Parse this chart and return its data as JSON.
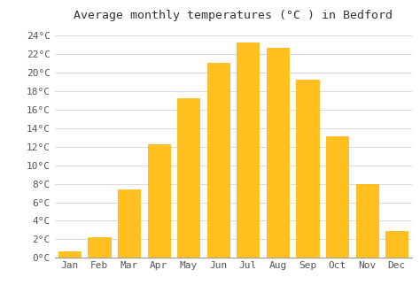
{
  "title": "Average monthly temperatures (°C ) in Bedford",
  "months": [
    "Jan",
    "Feb",
    "Mar",
    "Apr",
    "May",
    "Jun",
    "Jul",
    "Aug",
    "Sep",
    "Oct",
    "Nov",
    "Dec"
  ],
  "temperatures": [
    0.7,
    2.2,
    7.4,
    12.3,
    17.2,
    21.1,
    23.3,
    22.7,
    19.2,
    13.1,
    8.0,
    2.9
  ],
  "bar_color": "#FFC020",
  "bar_edge_color": "#FFB000",
  "ylim": [
    0,
    25
  ],
  "yticks": [
    0,
    2,
    4,
    6,
    8,
    10,
    12,
    14,
    16,
    18,
    20,
    22,
    24
  ],
  "background_color": "#ffffff",
  "grid_color": "#cccccc",
  "title_fontsize": 9.5,
  "tick_fontsize": 8,
  "title_font_family": "monospace"
}
